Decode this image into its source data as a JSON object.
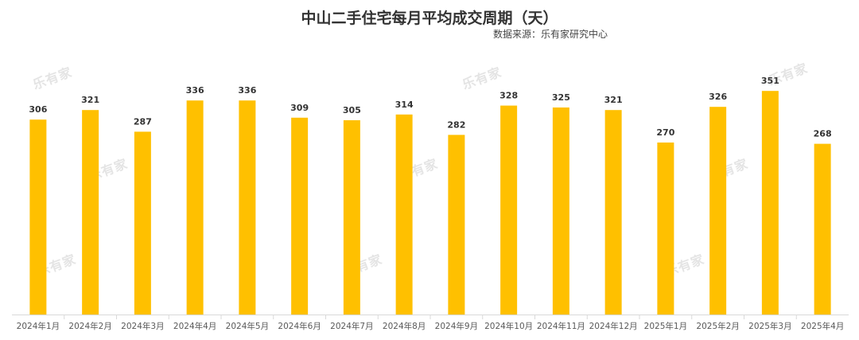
{
  "chart_data": {
    "type": "bar",
    "title": "中山二手住宅每月平均成交周期（天）",
    "subtitle": "数据来源：乐有家研究中心",
    "categories": [
      "2024年1月",
      "2024年2月",
      "2024年3月",
      "2024年4月",
      "2024年5月",
      "2024年6月",
      "2024年7月",
      "2024年8月",
      "2024年9月",
      "2024年10月",
      "2024年11月",
      "2024年12月",
      "2025年1月",
      "2025年2月",
      "2025年3月",
      "2025年4月"
    ],
    "values": [
      306,
      321,
      287,
      336,
      336,
      309,
      305,
      314,
      282,
      328,
      325,
      321,
      270,
      326,
      351,
      268
    ],
    "ylim": [
      0,
      375
    ],
    "grid": false,
    "bar_color": "#FFC000"
  },
  "watermark": {
    "text": "乐有家"
  }
}
